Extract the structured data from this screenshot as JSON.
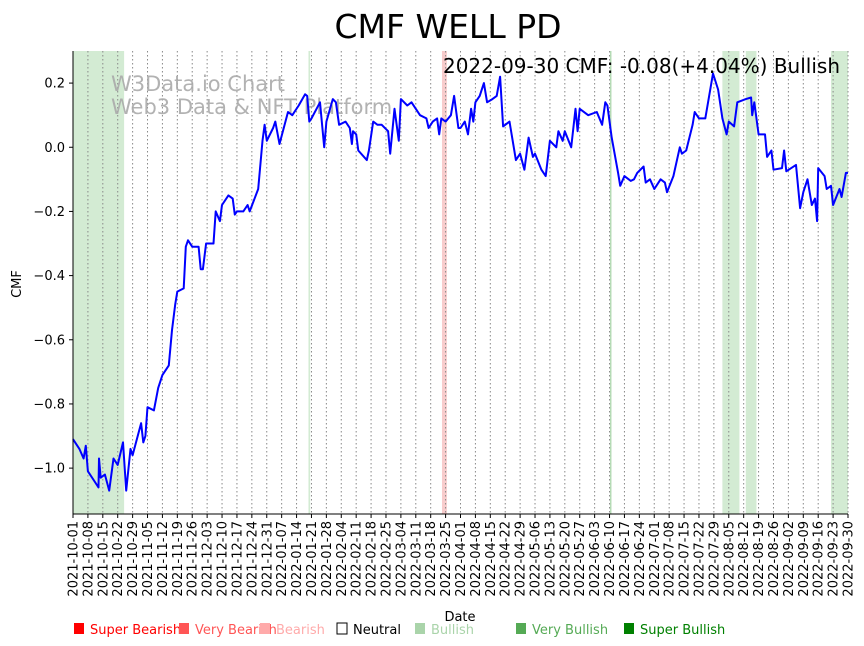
{
  "chart_data": {
    "type": "line",
    "title": "CMF WELL PD",
    "annotation": "2022-09-30 CMF: -0.08(+4.04%) Bullish",
    "watermark": [
      "W3Data.io Chart",
      "Web3 Data & NFT Platform"
    ],
    "xlabel": "Date",
    "ylabel": "CMF",
    "x_start_date": "2021-10-01",
    "x_unit": "days since 2021-10-01",
    "xlim": [
      0,
      364
    ],
    "ylim": [
      -1.143,
      0.3
    ],
    "yticks": [
      0.2,
      0.0,
      -0.2,
      -0.4,
      -0.6,
      -0.8,
      -1.0
    ],
    "ytick_labels": [
      "0.2",
      "0.0",
      "−0.2",
      "−0.4",
      "−0.6",
      "−0.8",
      "−1.0"
    ],
    "xtick_labels": [
      "2021-10-01",
      "2021-10-08",
      "2021-10-15",
      "2021-10-22",
      "2021-10-29",
      "2021-11-05",
      "2021-11-12",
      "2021-11-19",
      "2021-11-26",
      "2021-12-03",
      "2021-12-10",
      "2021-12-17",
      "2021-12-24",
      "2021-12-31",
      "2022-01-07",
      "2022-01-14",
      "2022-01-21",
      "2022-01-28",
      "2022-02-04",
      "2022-02-11",
      "2022-02-18",
      "2022-02-25",
      "2022-03-04",
      "2022-03-11",
      "2022-03-18",
      "2022-03-25",
      "2022-04-01",
      "2022-04-08",
      "2022-04-15",
      "2022-04-22",
      "2022-04-29",
      "2022-05-06",
      "2022-05-13",
      "2022-05-20",
      "2022-05-27",
      "2022-06-03",
      "2022-06-10",
      "2022-06-17",
      "2022-06-24",
      "2022-07-01",
      "2022-07-08",
      "2022-07-15",
      "2022-07-22",
      "2022-07-29",
      "2022-08-05",
      "2022-08-12",
      "2022-08-19",
      "2022-08-26",
      "2022-09-02",
      "2022-09-09",
      "2022-09-16",
      "2022-09-23",
      "2022-09-30"
    ],
    "xtick_days": [
      0,
      7,
      14,
      21,
      28,
      35,
      42,
      49,
      56,
      63,
      70,
      77,
      84,
      91,
      98,
      105,
      112,
      119,
      126,
      133,
      140,
      147,
      154,
      161,
      168,
      175,
      182,
      189,
      196,
      203,
      210,
      217,
      224,
      231,
      238,
      245,
      252,
      259,
      266,
      273,
      280,
      287,
      294,
      301,
      308,
      315,
      322,
      329,
      336,
      343,
      350,
      357,
      364
    ],
    "grid": "vertical dotted",
    "line_color": "#0000ff",
    "series": [
      {
        "name": "CMF",
        "points": [
          [
            0,
            -0.91
          ],
          [
            3,
            -0.94
          ],
          [
            5,
            -0.97
          ],
          [
            6,
            -0.93
          ],
          [
            7,
            -1.01
          ],
          [
            10,
            -1.04
          ],
          [
            12,
            -1.06
          ],
          [
            12.2,
            -0.97
          ],
          [
            13,
            -1.03
          ],
          [
            15,
            -1.02
          ],
          [
            17,
            -1.07
          ],
          [
            19,
            -0.97
          ],
          [
            21,
            -0.99
          ],
          [
            23.5,
            -0.92
          ],
          [
            25,
            -1.07
          ],
          [
            27,
            -0.94
          ],
          [
            28,
            -0.96
          ],
          [
            32,
            -0.86
          ],
          [
            33,
            -0.92
          ],
          [
            34,
            -0.9
          ],
          [
            35,
            -0.81
          ],
          [
            38,
            -0.82
          ],
          [
            40,
            -0.75
          ],
          [
            42,
            -0.71
          ],
          [
            45,
            -0.68
          ],
          [
            46.5,
            -0.57
          ],
          [
            48,
            -0.49
          ],
          [
            49,
            -0.45
          ],
          [
            52,
            -0.44
          ],
          [
            53,
            -0.31
          ],
          [
            54,
            -0.29
          ],
          [
            56,
            -0.31
          ],
          [
            59,
            -0.31
          ],
          [
            60,
            -0.38
          ],
          [
            61,
            -0.38
          ],
          [
            62.5,
            -0.3
          ],
          [
            66,
            -0.3
          ],
          [
            67,
            -0.2
          ],
          [
            69,
            -0.23
          ],
          [
            70,
            -0.18
          ],
          [
            73,
            -0.15
          ],
          [
            75,
            -0.16
          ],
          [
            76,
            -0.21
          ],
          [
            77,
            -0.2
          ],
          [
            80,
            -0.2
          ],
          [
            82,
            -0.18
          ],
          [
            83,
            -0.2
          ],
          [
            87,
            -0.13
          ],
          [
            89,
            0.02
          ],
          [
            90,
            0.07
          ],
          [
            91,
            0.02
          ],
          [
            94,
            0.06
          ],
          [
            95,
            0.08
          ],
          [
            97,
            0.01
          ],
          [
            101,
            0.11
          ],
          [
            103,
            0.1
          ],
          [
            106,
            0.13
          ],
          [
            109,
            0.165
          ],
          [
            110,
            0.16
          ],
          [
            111,
            0.08
          ],
          [
            112,
            0.09
          ],
          [
            116,
            0.14
          ],
          [
            118,
            0.0
          ],
          [
            119,
            0.08
          ],
          [
            122,
            0.15
          ],
          [
            123.5,
            0.14
          ],
          [
            125,
            0.07
          ],
          [
            128,
            0.08
          ],
          [
            130,
            0.06
          ],
          [
            131,
            0.01
          ],
          [
            131.5,
            0.05
          ],
          [
            133,
            0.04
          ],
          [
            134,
            -0.01
          ],
          [
            138,
            -0.04
          ],
          [
            139,
            -0.01
          ],
          [
            141,
            0.08
          ],
          [
            143,
            0.07
          ],
          [
            145,
            0.07
          ],
          [
            148,
            0.05
          ],
          [
            149,
            -0.02
          ],
          [
            151,
            0.12
          ],
          [
            153,
            0.02
          ],
          [
            154,
            0.15
          ],
          [
            157,
            0.13
          ],
          [
            159,
            0.14
          ],
          [
            161,
            0.12
          ],
          [
            163,
            0.1
          ],
          [
            166,
            0.09
          ],
          [
            167,
            0.06
          ],
          [
            169,
            0.08
          ],
          [
            171,
            0.09
          ],
          [
            172,
            0.04
          ],
          [
            173,
            0.09
          ],
          [
            175,
            0.08
          ],
          [
            177.5,
            0.1
          ],
          [
            179,
            0.16
          ],
          [
            181,
            0.06
          ],
          [
            182,
            0.06
          ],
          [
            184,
            0.08
          ],
          [
            185.5,
            0.04
          ],
          [
            187,
            0.12
          ],
          [
            188,
            0.08
          ],
          [
            189,
            0.14
          ],
          [
            191,
            0.16
          ],
          [
            193,
            0.2
          ],
          [
            194.5,
            0.14
          ],
          [
            197,
            0.15
          ],
          [
            199,
            0.16
          ],
          [
            200.6,
            0.22
          ],
          [
            202,
            0.065
          ],
          [
            205,
            0.08
          ],
          [
            208,
            -0.04
          ],
          [
            210,
            -0.02
          ],
          [
            212,
            -0.07
          ],
          [
            214,
            0.03
          ],
          [
            216,
            -0.03
          ],
          [
            217,
            -0.02
          ],
          [
            220,
            -0.07
          ],
          [
            222,
            -0.09
          ],
          [
            224,
            0.02
          ],
          [
            227,
            0.0
          ],
          [
            228,
            0.05
          ],
          [
            230,
            0.02
          ],
          [
            231,
            0.05
          ],
          [
            234,
            0.0
          ],
          [
            236,
            0.12
          ],
          [
            237,
            0.05
          ],
          [
            238,
            0.12
          ],
          [
            242,
            0.1
          ],
          [
            246,
            0.11
          ],
          [
            248.5,
            0.07
          ],
          [
            250,
            0.14
          ],
          [
            251,
            0.13
          ],
          [
            253,
            0.03
          ],
          [
            256,
            -0.08
          ],
          [
            257,
            -0.12
          ],
          [
            259,
            -0.09
          ],
          [
            262,
            -0.105
          ],
          [
            263.5,
            -0.1
          ],
          [
            265,
            -0.08
          ],
          [
            268,
            -0.06
          ],
          [
            269,
            -0.11
          ],
          [
            271,
            -0.1
          ],
          [
            273,
            -0.13
          ],
          [
            274,
            -0.12
          ],
          [
            276,
            -0.1
          ],
          [
            278,
            -0.11
          ],
          [
            279,
            -0.14
          ],
          [
            282,
            -0.09
          ],
          [
            285,
            0.0
          ],
          [
            286,
            -0.02
          ],
          [
            288,
            -0.01
          ],
          [
            291,
            0.07
          ],
          [
            292,
            0.11
          ],
          [
            294,
            0.09
          ],
          [
            297,
            0.09
          ],
          [
            300.6,
            0.23
          ],
          [
            303,
            0.18
          ],
          [
            305,
            0.09
          ],
          [
            307,
            0.04
          ],
          [
            308,
            0.08
          ],
          [
            310.5,
            0.065
          ],
          [
            312,
            0.14
          ],
          [
            316,
            0.15
          ],
          [
            318.5,
            0.155
          ],
          [
            319,
            0.1
          ],
          [
            320,
            0.14
          ],
          [
            322,
            0.04
          ],
          [
            325,
            0.04
          ],
          [
            326,
            -0.03
          ],
          [
            328,
            -0.01
          ],
          [
            329,
            -0.07
          ],
          [
            333,
            -0.065
          ],
          [
            334,
            -0.01
          ],
          [
            335,
            -0.075
          ],
          [
            339.6,
            -0.055
          ],
          [
            341.5,
            -0.19
          ],
          [
            343,
            -0.14
          ],
          [
            345,
            -0.1
          ],
          [
            347,
            -0.18
          ],
          [
            348.5,
            -0.16
          ],
          [
            349.5,
            -0.23
          ],
          [
            350,
            -0.065
          ],
          [
            353,
            -0.09
          ],
          [
            354,
            -0.13
          ],
          [
            356,
            -0.12
          ],
          [
            357,
            -0.18
          ],
          [
            360,
            -0.13
          ],
          [
            361,
            -0.155
          ],
          [
            363,
            -0.08
          ],
          [
            364,
            -0.08
          ]
        ]
      }
    ],
    "regions": [
      {
        "start": 0,
        "end": 24,
        "type": "Very Bullish",
        "color": "#d3ebd3"
      },
      {
        "start": 110.6,
        "end": 111.4,
        "type": "Very Bullish",
        "color": "#d3ebd3"
      },
      {
        "start": 173.3,
        "end": 175.6,
        "type": "Bearish",
        "color": "#f8cccc"
      },
      {
        "start": 252.2,
        "end": 252.8,
        "type": "Very Bullish",
        "color": "#b6dcb6"
      },
      {
        "start": 305,
        "end": 313,
        "type": "Very Bullish",
        "color": "#d3ebd3"
      },
      {
        "start": 316,
        "end": 321,
        "type": "Very Bullish",
        "color": "#d3ebd3"
      },
      {
        "start": 356,
        "end": 364,
        "type": "Very Bullish",
        "color": "#d3ebd3"
      }
    ],
    "legend": {
      "placement": "bottom",
      "items": [
        {
          "label": "Super Bearish",
          "color": "#ff0000",
          "text_color": "#ff0000"
        },
        {
          "label": "Very Bearish",
          "color": "#ff5555",
          "text_color": "#ff5555"
        },
        {
          "label": "Bearish",
          "color": "#ffaaaa",
          "text_color": "#ffaaaa"
        },
        {
          "label": "Neutral",
          "color": "none",
          "text_color": "#000000"
        },
        {
          "label": "Bullish",
          "color": "#aad4aa",
          "text_color": "#aad4aa"
        },
        {
          "label": "Very Bullish",
          "color": "#55aa55",
          "text_color": "#55aa55"
        },
        {
          "label": "Super Bullish",
          "color": "#008000",
          "text_color": "#008000"
        }
      ]
    }
  }
}
